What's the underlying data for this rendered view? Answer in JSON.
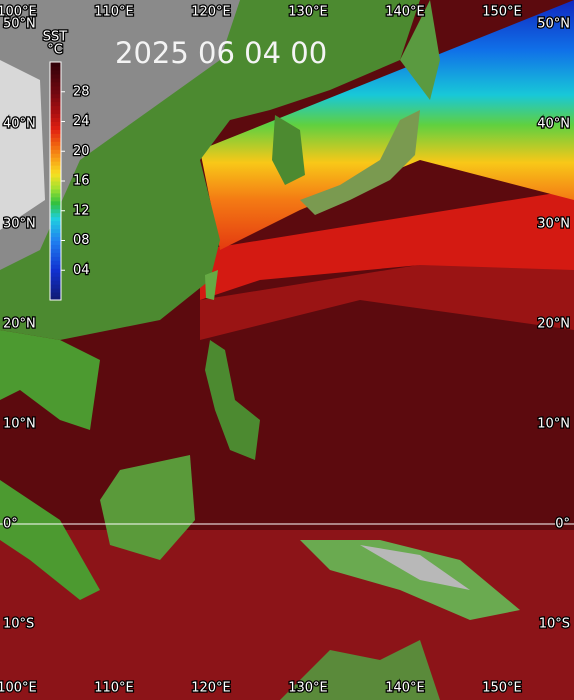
{
  "title": "2025 06 04 00",
  "colorbar": {
    "label": "SST",
    "unit": "°C",
    "range": [
      0,
      32
    ],
    "ticks": [
      {
        "value": 4,
        "label": "04"
      },
      {
        "value": 8,
        "label": "08"
      },
      12,
      16,
      20,
      24,
      28
    ]
  },
  "longitude_ticks": [
    {
      "value": 100,
      "label": "100°E"
    },
    {
      "value": 110,
      "label": "110°E"
    },
    {
      "value": 120,
      "label": "120°E"
    },
    {
      "value": 130,
      "label": "130°E"
    },
    {
      "value": 140,
      "label": "140°E"
    },
    {
      "value": 150,
      "label": "150°E"
    }
  ],
  "latitude_ticks": [
    {
      "value": 50,
      "label": "50°N"
    },
    {
      "value": 40,
      "label": "40°N"
    },
    {
      "value": 30,
      "label": "30°N"
    },
    {
      "value": 20,
      "label": "20°N"
    },
    {
      "value": 10,
      "label": "10°N"
    },
    {
      "value": 0,
      "label": "0°"
    },
    {
      "value": -10,
      "label": "10°S"
    }
  ]
}
